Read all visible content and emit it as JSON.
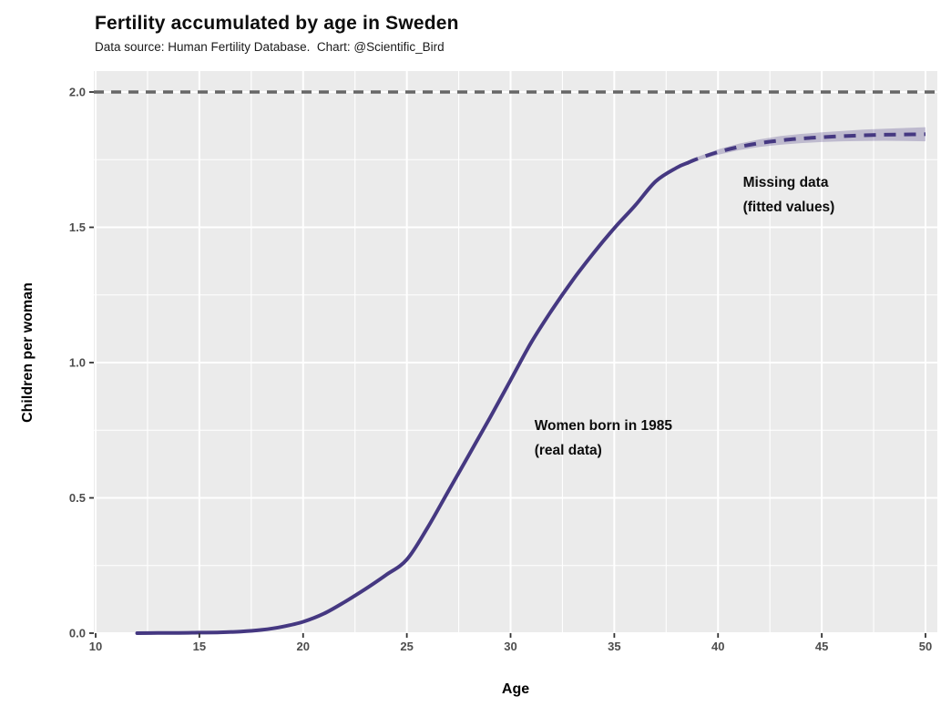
{
  "header": {
    "title": "Fertility accumulated by age in Sweden",
    "subtitle": "Data source: Human Fertility Database.  Chart: @Scientific_Bird"
  },
  "axes": {
    "x_label": "Age",
    "y_label": "Children per woman",
    "x_tick_labels": [
      "10",
      "15",
      "20",
      "25",
      "30",
      "35",
      "40",
      "45",
      "50"
    ],
    "y_tick_labels": [
      "0.0",
      "0.5",
      "1.0",
      "1.5",
      "2.0"
    ]
  },
  "colors": {
    "panel_background": "#EBEBEB",
    "gridline": "#FFFFFF",
    "curve": "#453881",
    "ribbon": "rgba(69,56,129,0.27)",
    "reference_line": "#666666",
    "tick_mark": "#333333",
    "tick_text": "#4d4d4d"
  },
  "chart_data": {
    "type": "line",
    "title": "Fertility accumulated by age in Sweden",
    "subtitle": "Data source: Human Fertility Database.  Chart: @Scientific_Bird",
    "xlabel": "Age",
    "ylabel": "Children per woman",
    "xlim": [
      10,
      50.5
    ],
    "ylim": [
      0,
      2.08
    ],
    "x_ticks": [
      10,
      15,
      20,
      25,
      30,
      35,
      40,
      45,
      50
    ],
    "y_ticks": [
      0,
      0.5,
      1.0,
      1.5,
      2.0
    ],
    "x_minor_ticks": [
      12.5,
      15,
      17.5,
      20,
      22.5,
      25,
      27.5,
      30,
      32.5,
      35,
      37.5,
      40,
      42.5,
      45,
      47.5,
      50
    ],
    "y_minor_ticks": [
      0.25,
      0.75,
      1.25,
      1.75
    ],
    "grid": "major-and-minor-white-on-gray",
    "legend_position": "none",
    "reference_line": {
      "y": 2.0,
      "style": "dashed"
    },
    "series": [
      {
        "name": "Women born in 1985 (real data)",
        "style": "solid",
        "x": [
          12,
          13,
          14,
          15,
          16,
          17,
          18,
          19,
          20,
          21,
          22,
          23,
          24,
          25,
          26,
          27,
          28,
          29,
          30,
          31,
          32,
          33,
          34,
          35,
          36,
          37,
          38,
          38.5
        ],
        "y": [
          0,
          0.001,
          0.001,
          0.002,
          0.003,
          0.006,
          0.012,
          0.024,
          0.042,
          0.072,
          0.115,
          0.163,
          0.215,
          0.272,
          0.39,
          0.525,
          0.66,
          0.795,
          0.935,
          1.075,
          1.195,
          1.305,
          1.405,
          1.497,
          1.58,
          1.67,
          1.72,
          1.737
        ]
      },
      {
        "name": "Missing data (fitted values)",
        "style": "dashed",
        "x": [
          38.5,
          39,
          40,
          41,
          42,
          43,
          44,
          45,
          46,
          47,
          48,
          49,
          50
        ],
        "y": [
          1.737,
          1.753,
          1.778,
          1.797,
          1.811,
          1.821,
          1.828,
          1.833,
          1.837,
          1.84,
          1.842,
          1.843,
          1.844
        ],
        "band_lower": [
          1.732,
          1.746,
          1.768,
          1.785,
          1.797,
          1.805,
          1.811,
          1.815,
          1.818,
          1.819,
          1.82,
          1.819,
          1.818
        ],
        "band_upper": [
          1.742,
          1.76,
          1.788,
          1.809,
          1.825,
          1.837,
          1.845,
          1.851,
          1.856,
          1.861,
          1.864,
          1.867,
          1.87
        ]
      }
    ],
    "annotations": [
      {
        "lines": [
          "Women born in 1985",
          "(real data)"
        ],
        "anchor_age": 31.15,
        "anchor_value": 0.81
      },
      {
        "lines": [
          "Missing data",
          "(fitted values)"
        ],
        "anchor_age": 41.2,
        "anchor_value": 1.71
      }
    ]
  }
}
